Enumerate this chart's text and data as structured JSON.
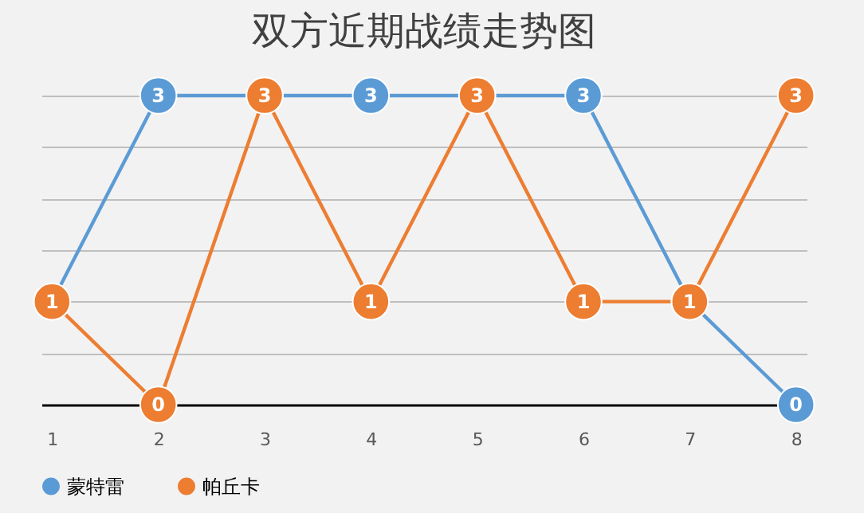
{
  "chart_data": {
    "type": "line",
    "title": "双方近期战绩走势图",
    "categories": [
      "1",
      "2",
      "3",
      "4",
      "5",
      "6",
      "7",
      "8"
    ],
    "series": [
      {
        "name": "蒙特雷",
        "color": "#5b9bd5",
        "values": [
          1,
          3,
          3,
          3,
          3,
          3,
          1,
          0
        ],
        "value_labels": [
          null,
          "3",
          null,
          "3",
          null,
          "3",
          null,
          "0"
        ]
      },
      {
        "name": "帕丘卡",
        "color": "#ed7d31",
        "values": [
          1,
          0,
          3,
          1,
          3,
          1,
          1,
          3
        ],
        "value_labels": [
          "1",
          "0",
          "3",
          "1",
          "3",
          "1",
          "1",
          "3"
        ]
      }
    ],
    "tick_labels": "x",
    "grid": "y",
    "legend": "bottom",
    "marker": "circle",
    "line_style": "solid"
  }
}
